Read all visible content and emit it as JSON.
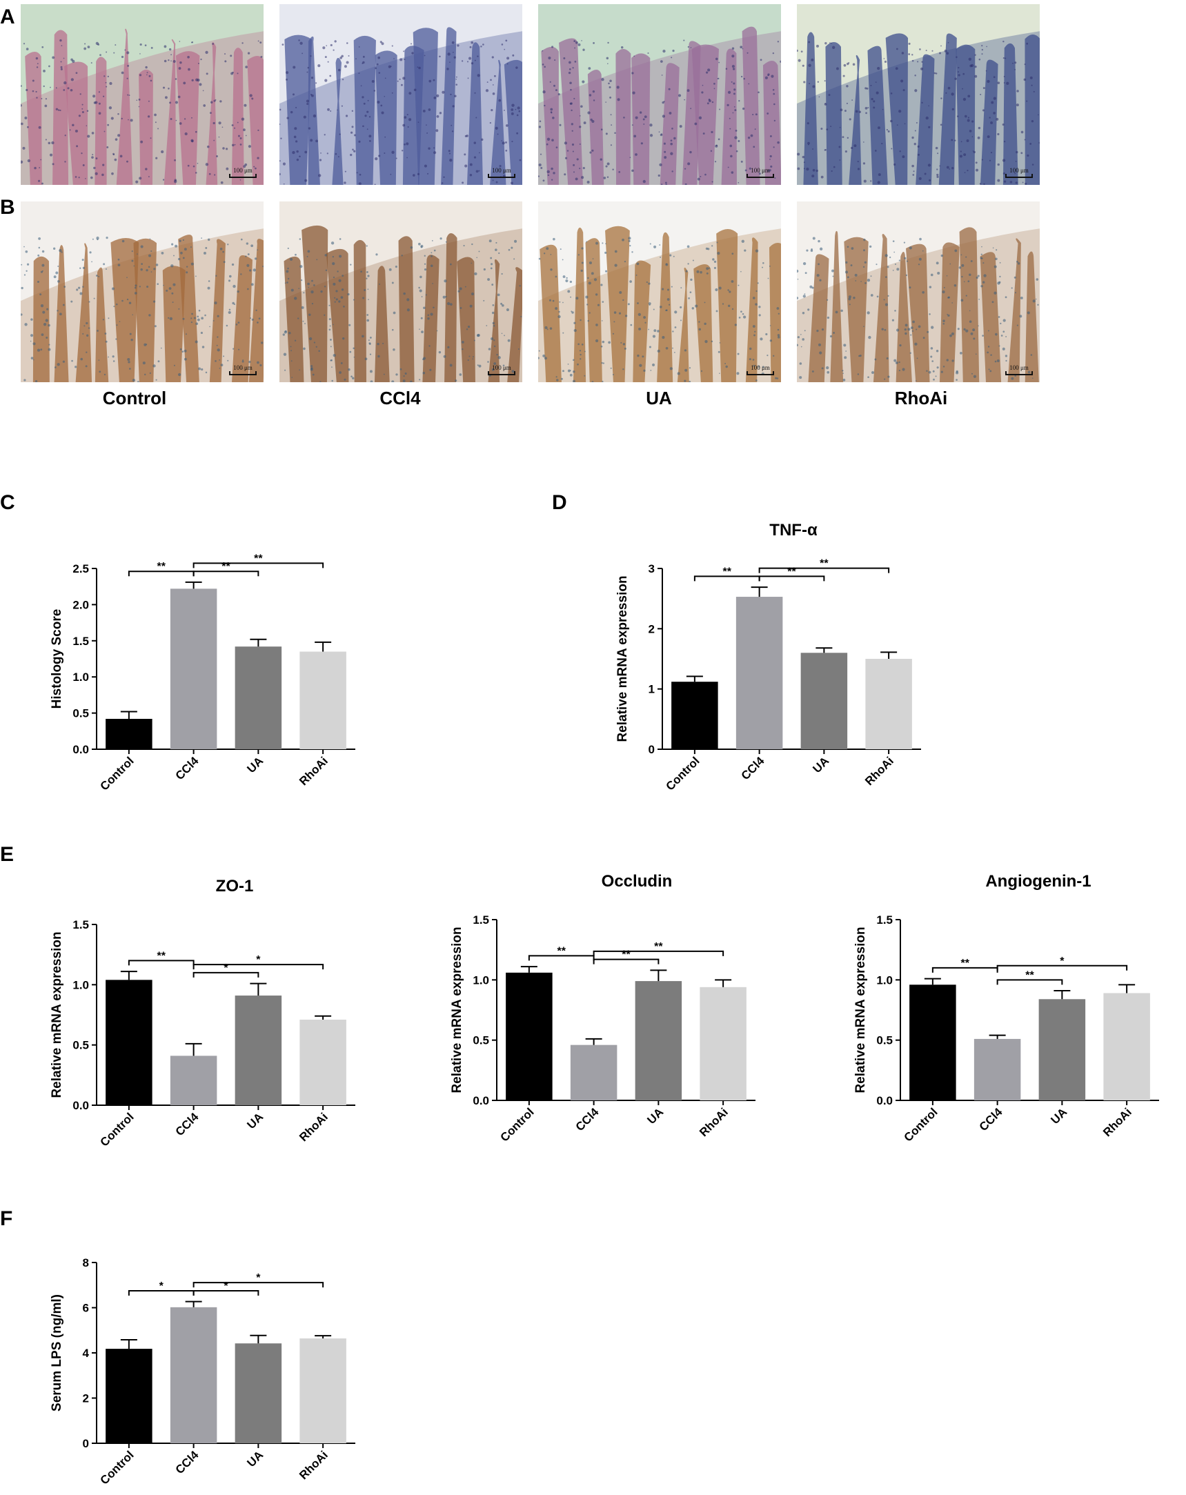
{
  "panel_letters": {
    "A": "A",
    "B": "B",
    "C": "C",
    "D": "D",
    "E": "E",
    "F": "F"
  },
  "groups": [
    "Control",
    "CCl4",
    "UA",
    "RhoAi"
  ],
  "micrographs": {
    "scale_label": "100 μm",
    "he_colors": [
      "#b9728f",
      "#4e5c9b",
      "#9a6f9a",
      "#3e4f8c"
    ],
    "he_backgrounds": [
      "#c9ddc9",
      "#e6e8f0",
      "#c6dccb",
      "#dfe6d5"
    ],
    "ihc_colors": [
      "#a36a3c",
      "#8a5a35",
      "#a8743f",
      "#9c6b44"
    ],
    "ihc_backgrounds": [
      "#f2efec",
      "#efe9e2",
      "#f4f3f1",
      "#f3f0ec"
    ]
  },
  "chart_data": [
    {
      "id": "C",
      "type": "bar",
      "title": "",
      "ylabel": "Histology Score",
      "categories": [
        "Control",
        "CCl4",
        "UA",
        "RhoAi"
      ],
      "values": [
        0.42,
        2.22,
        1.42,
        1.35
      ],
      "errors": [
        0.1,
        0.09,
        0.1,
        0.13
      ],
      "ylim": [
        0,
        2.5
      ],
      "yticks": [
        "0.0",
        "0.5",
        "1.0",
        "1.5",
        "2.0",
        "2.5"
      ],
      "comparisons": [
        {
          "from": 0,
          "to": 1,
          "label": "**"
        },
        {
          "from": 1,
          "to": 2,
          "label": "**"
        },
        {
          "from": 1,
          "to": 3,
          "label": "**"
        }
      ]
    },
    {
      "id": "D",
      "type": "bar",
      "title": "TNF-α",
      "ylabel": "Relative mRNA expression",
      "categories": [
        "Control",
        "CCl4",
        "UA",
        "RhoAi"
      ],
      "values": [
        1.12,
        2.53,
        1.6,
        1.5
      ],
      "errors": [
        0.09,
        0.16,
        0.08,
        0.11
      ],
      "ylim": [
        0,
        3
      ],
      "yticks": [
        "0",
        "1",
        "2",
        "3"
      ],
      "comparisons": [
        {
          "from": 0,
          "to": 1,
          "label": "**"
        },
        {
          "from": 1,
          "to": 2,
          "label": "**"
        },
        {
          "from": 1,
          "to": 3,
          "label": "**"
        }
      ]
    },
    {
      "id": "E1",
      "type": "bar",
      "title": "ZO-1",
      "ylabel": "Relative mRNA expression",
      "categories": [
        "Control",
        "CCl4",
        "UA",
        "RhoAi"
      ],
      "values": [
        1.04,
        0.41,
        0.91,
        0.71
      ],
      "errors": [
        0.07,
        0.1,
        0.1,
        0.03
      ],
      "ylim": [
        0,
        1.5
      ],
      "yticks": [
        "0.0",
        "0.5",
        "1.0",
        "1.5"
      ],
      "comparisons": [
        {
          "from": 0,
          "to": 1,
          "label": "**"
        },
        {
          "from": 1,
          "to": 2,
          "label": "*"
        },
        {
          "from": 1,
          "to": 3,
          "label": "*"
        }
      ]
    },
    {
      "id": "E2",
      "type": "bar",
      "title": "Occludin",
      "ylabel": "Relative mRNA expression",
      "categories": [
        "Control",
        "CCl4",
        "UA",
        "RhoAi"
      ],
      "values": [
        1.06,
        0.46,
        0.99,
        0.94
      ],
      "errors": [
        0.05,
        0.05,
        0.09,
        0.06
      ],
      "ylim": [
        0,
        1.5
      ],
      "yticks": [
        "0.0",
        "0.5",
        "1.0",
        "1.5"
      ],
      "comparisons": [
        {
          "from": 0,
          "to": 1,
          "label": "**"
        },
        {
          "from": 1,
          "to": 2,
          "label": "**"
        },
        {
          "from": 1,
          "to": 3,
          "label": "**"
        }
      ]
    },
    {
      "id": "E3",
      "type": "bar",
      "title": "Angiogenin-1",
      "ylabel": "Relative mRNA expression",
      "categories": [
        "Control",
        "CCl4",
        "UA",
        "RhoAi"
      ],
      "values": [
        0.96,
        0.51,
        0.84,
        0.89
      ],
      "errors": [
        0.05,
        0.03,
        0.07,
        0.07
      ],
      "ylim": [
        0,
        1.5
      ],
      "yticks": [
        "0.0",
        "0.5",
        "1.0",
        "1.5"
      ],
      "comparisons": [
        {
          "from": 0,
          "to": 1,
          "label": "**"
        },
        {
          "from": 1,
          "to": 2,
          "label": "**"
        },
        {
          "from": 1,
          "to": 3,
          "label": "*"
        }
      ]
    },
    {
      "id": "F",
      "type": "bar",
      "title": "",
      "ylabel": "Serum LPS (ng/ml)",
      "categories": [
        "Control",
        "CCl4",
        "UA",
        "RhoAi"
      ],
      "values": [
        4.18,
        6.02,
        4.42,
        4.64
      ],
      "errors": [
        0.4,
        0.25,
        0.35,
        0.12
      ],
      "ylim": [
        0,
        8
      ],
      "yticks": [
        "0",
        "2",
        "4",
        "6",
        "8"
      ],
      "comparisons": [
        {
          "from": 0,
          "to": 1,
          "label": "*"
        },
        {
          "from": 1,
          "to": 2,
          "label": "*"
        },
        {
          "from": 1,
          "to": 3,
          "label": "*"
        }
      ]
    }
  ],
  "bar_colors": [
    "#000000",
    "#a0a0a6",
    "#7c7c7c",
    "#d4d4d4"
  ]
}
